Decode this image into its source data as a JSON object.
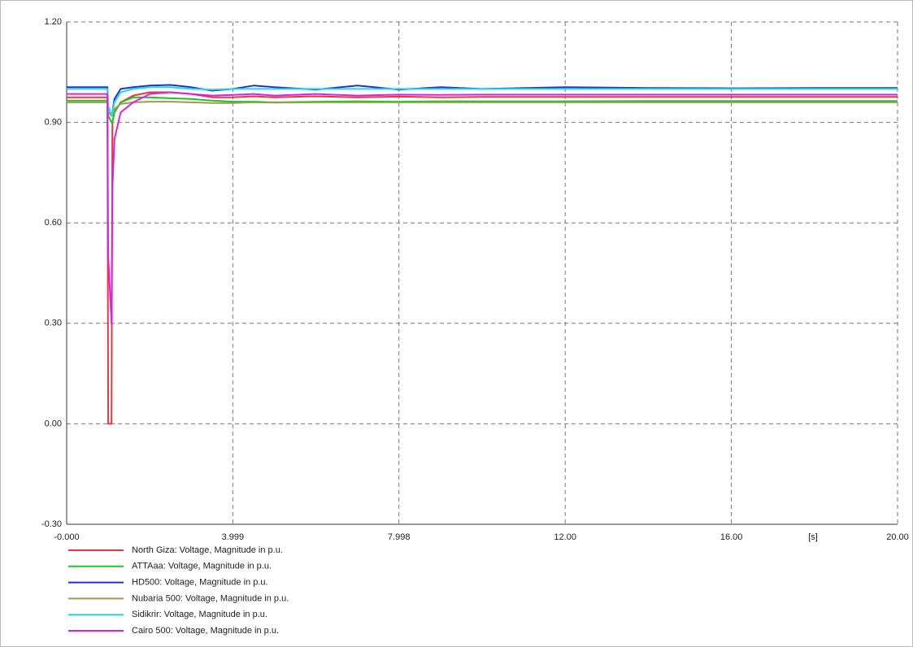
{
  "chart_data": {
    "type": "line",
    "x_label": "[s]",
    "x": [
      0,
      0.98,
      1.0,
      1.08,
      1.1,
      1.15,
      1.3,
      1.6,
      2.0,
      2.5,
      3.0,
      3.5,
      4.0,
      4.5,
      5.0,
      6.0,
      7.0,
      8.0,
      9.0,
      10.0,
      12.0,
      14.0,
      16.0,
      18.0,
      20.0
    ],
    "series": [
      {
        "name": "North Giza: Voltage, Magnitude in p.u.",
        "color": "#e8383d",
        "values": [
          0.975,
          0.975,
          0,
          0,
          0.9,
          0.93,
          0.96,
          0.98,
          0.99,
          0.99,
          0.985,
          0.975,
          0.975,
          0.978,
          0.975,
          0.978,
          0.975,
          0.977,
          0.975,
          0.976,
          0.976,
          0.976,
          0.976,
          0.976,
          0.976
        ]
      },
      {
        "name": "ATTAaa: Voltage, Magnitude in p.u.",
        "color": "#22c02a",
        "values": [
          0.965,
          0.965,
          0.92,
          0.9,
          0.9,
          0.93,
          0.96,
          0.975,
          0.975,
          0.972,
          0.97,
          0.965,
          0.962,
          0.962,
          0.96,
          0.962,
          0.963,
          0.962,
          0.963,
          0.963,
          0.963,
          0.964,
          0.964,
          0.964,
          0.964
        ]
      },
      {
        "name": "HD500: Voltage, Magnitude in p.u.",
        "color": "#2233cc",
        "values": [
          1.005,
          1.005,
          0.93,
          0.92,
          0.93,
          0.97,
          1.0,
          1.005,
          1.01,
          1.012,
          1.005,
          0.995,
          1.0,
          1.01,
          1.005,
          0.998,
          1.01,
          0.998,
          1.005,
          1.0,
          1.005,
          1.003,
          1.002,
          1.003,
          1.003
        ]
      },
      {
        "name": "Nubaria 500: Voltage, Magnitude in p.u.",
        "color": "#a09a4e",
        "values": [
          0.96,
          0.96,
          0.93,
          0.92,
          0.92,
          0.94,
          0.955,
          0.96,
          0.962,
          0.962,
          0.96,
          0.958,
          0.958,
          0.96,
          0.959,
          0.96,
          0.96,
          0.96,
          0.96,
          0.96,
          0.96,
          0.96,
          0.96,
          0.96,
          0.96
        ]
      },
      {
        "name": "Sidikrir: Voltage, Magnitude in p.u.",
        "color": "#22d8e8",
        "values": [
          1.0,
          1.0,
          0.95,
          0.92,
          0.93,
          0.96,
          0.99,
          1.0,
          1.005,
          1.005,
          1.0,
          0.998,
          1.0,
          1.0,
          1.0,
          1.0,
          1.0,
          1.0,
          1.0,
          1.0,
          1.0,
          1.0,
          1.0,
          1.0,
          1.0
        ]
      },
      {
        "name": "Cairo 500: Voltage, Magnitude in p.u.",
        "color": "#e020e0",
        "values": [
          0.985,
          0.985,
          0.5,
          0.3,
          0.7,
          0.85,
          0.93,
          0.96,
          0.985,
          0.99,
          0.985,
          0.98,
          0.982,
          0.985,
          0.98,
          0.985,
          0.98,
          0.983,
          0.982,
          0.983,
          0.983,
          0.983,
          0.983,
          0.983,
          0.983
        ]
      }
    ],
    "xlim": [
      0,
      20
    ],
    "xticks": [
      {
        "value": 0,
        "label": "-0.000"
      },
      3.999,
      7.998,
      {
        "value": 12,
        "label": "12.00"
      },
      {
        "value": 16,
        "label": "16.00"
      },
      {
        "value": 20,
        "label": "20.00"
      }
    ],
    "ylim": [
      -0.3,
      1.2
    ],
    "yticks": [
      {
        "value": -0.3,
        "label": "-0.30"
      },
      {
        "value": 0,
        "label": "0.00"
      },
      {
        "value": 0.3,
        "label": "0.30"
      },
      {
        "value": 0.6,
        "label": "0.60"
      },
      {
        "value": 0.9,
        "label": "0.90"
      },
      {
        "value": 1.2,
        "label": "1.20"
      }
    ],
    "grid": true
  }
}
